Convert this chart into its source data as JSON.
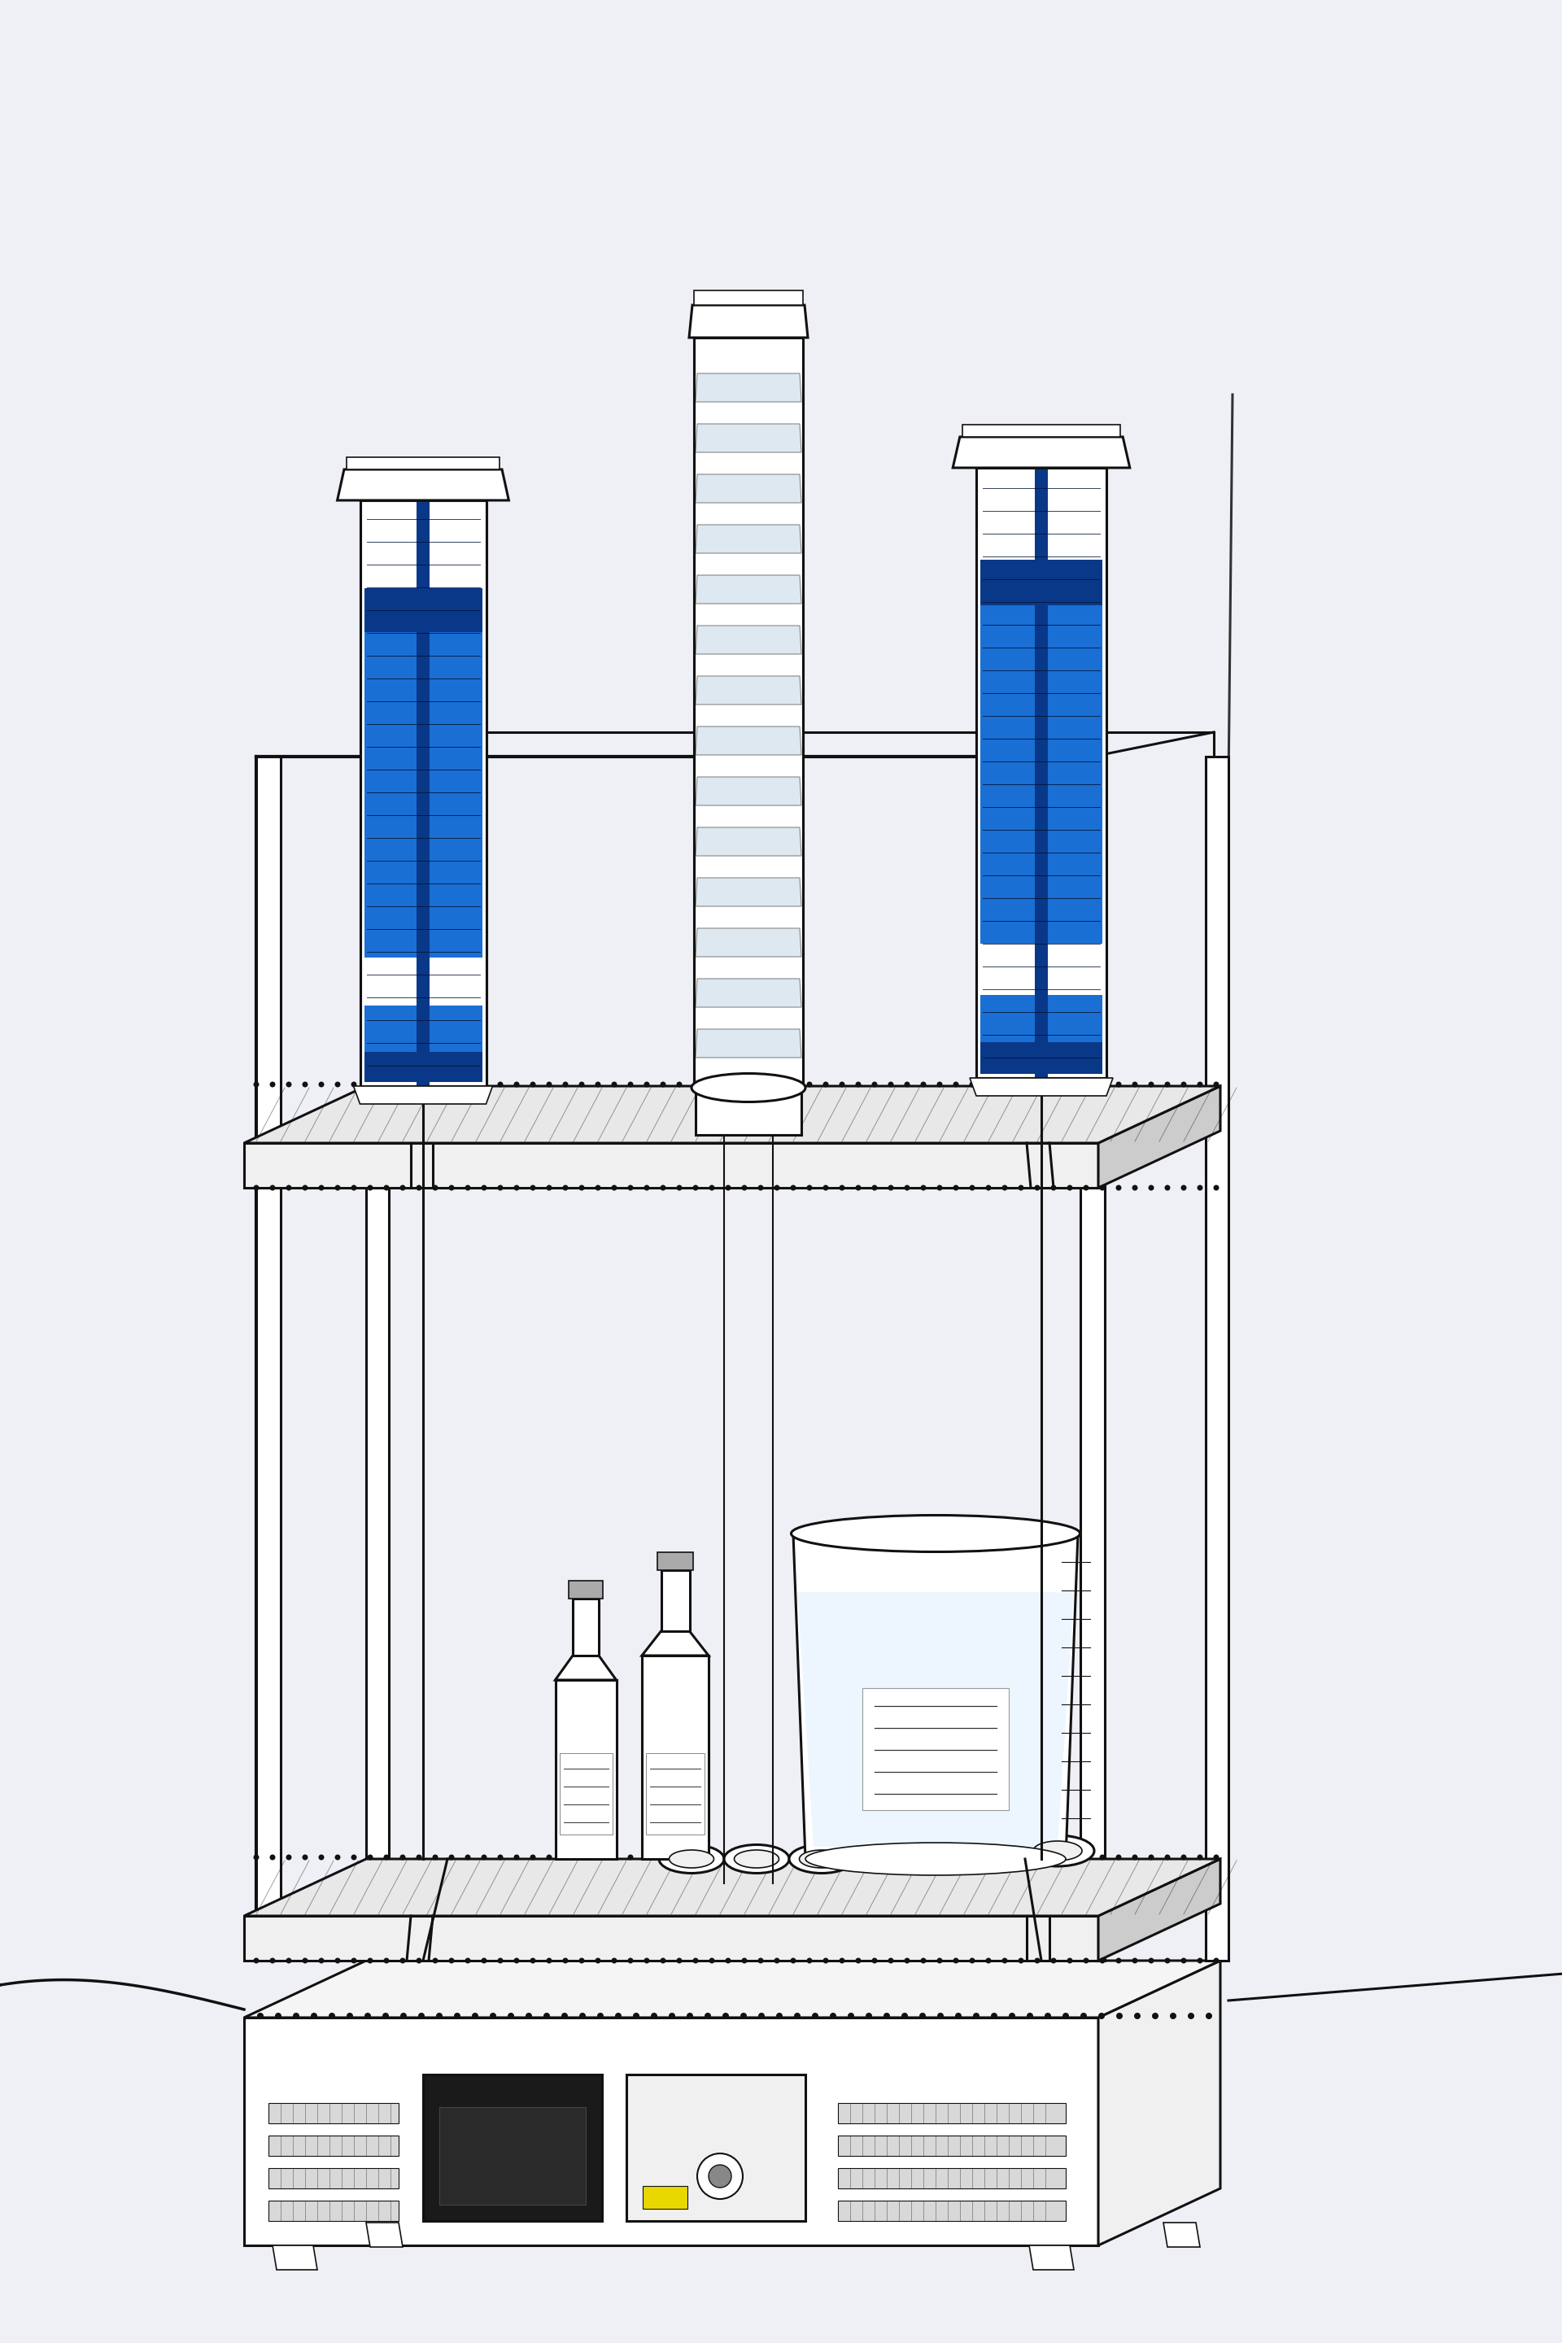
{
  "bg_color": "#eef0f5",
  "line_color": "#111111",
  "blue_color": "#1a6fd4",
  "blue_dark": "#0a3888",
  "blue_light": "#5ab0f8",
  "yellow_color": "#e8d800",
  "gray_light": "#f0f0f0",
  "gray_mid": "#cccccc",
  "gray_dark": "#888888",
  "white": "#ffffff",
  "figsize": [
    19.2,
    28.8
  ],
  "lw_main": 2.2,
  "lw_thick": 3.0,
  "lw_thin": 1.2
}
